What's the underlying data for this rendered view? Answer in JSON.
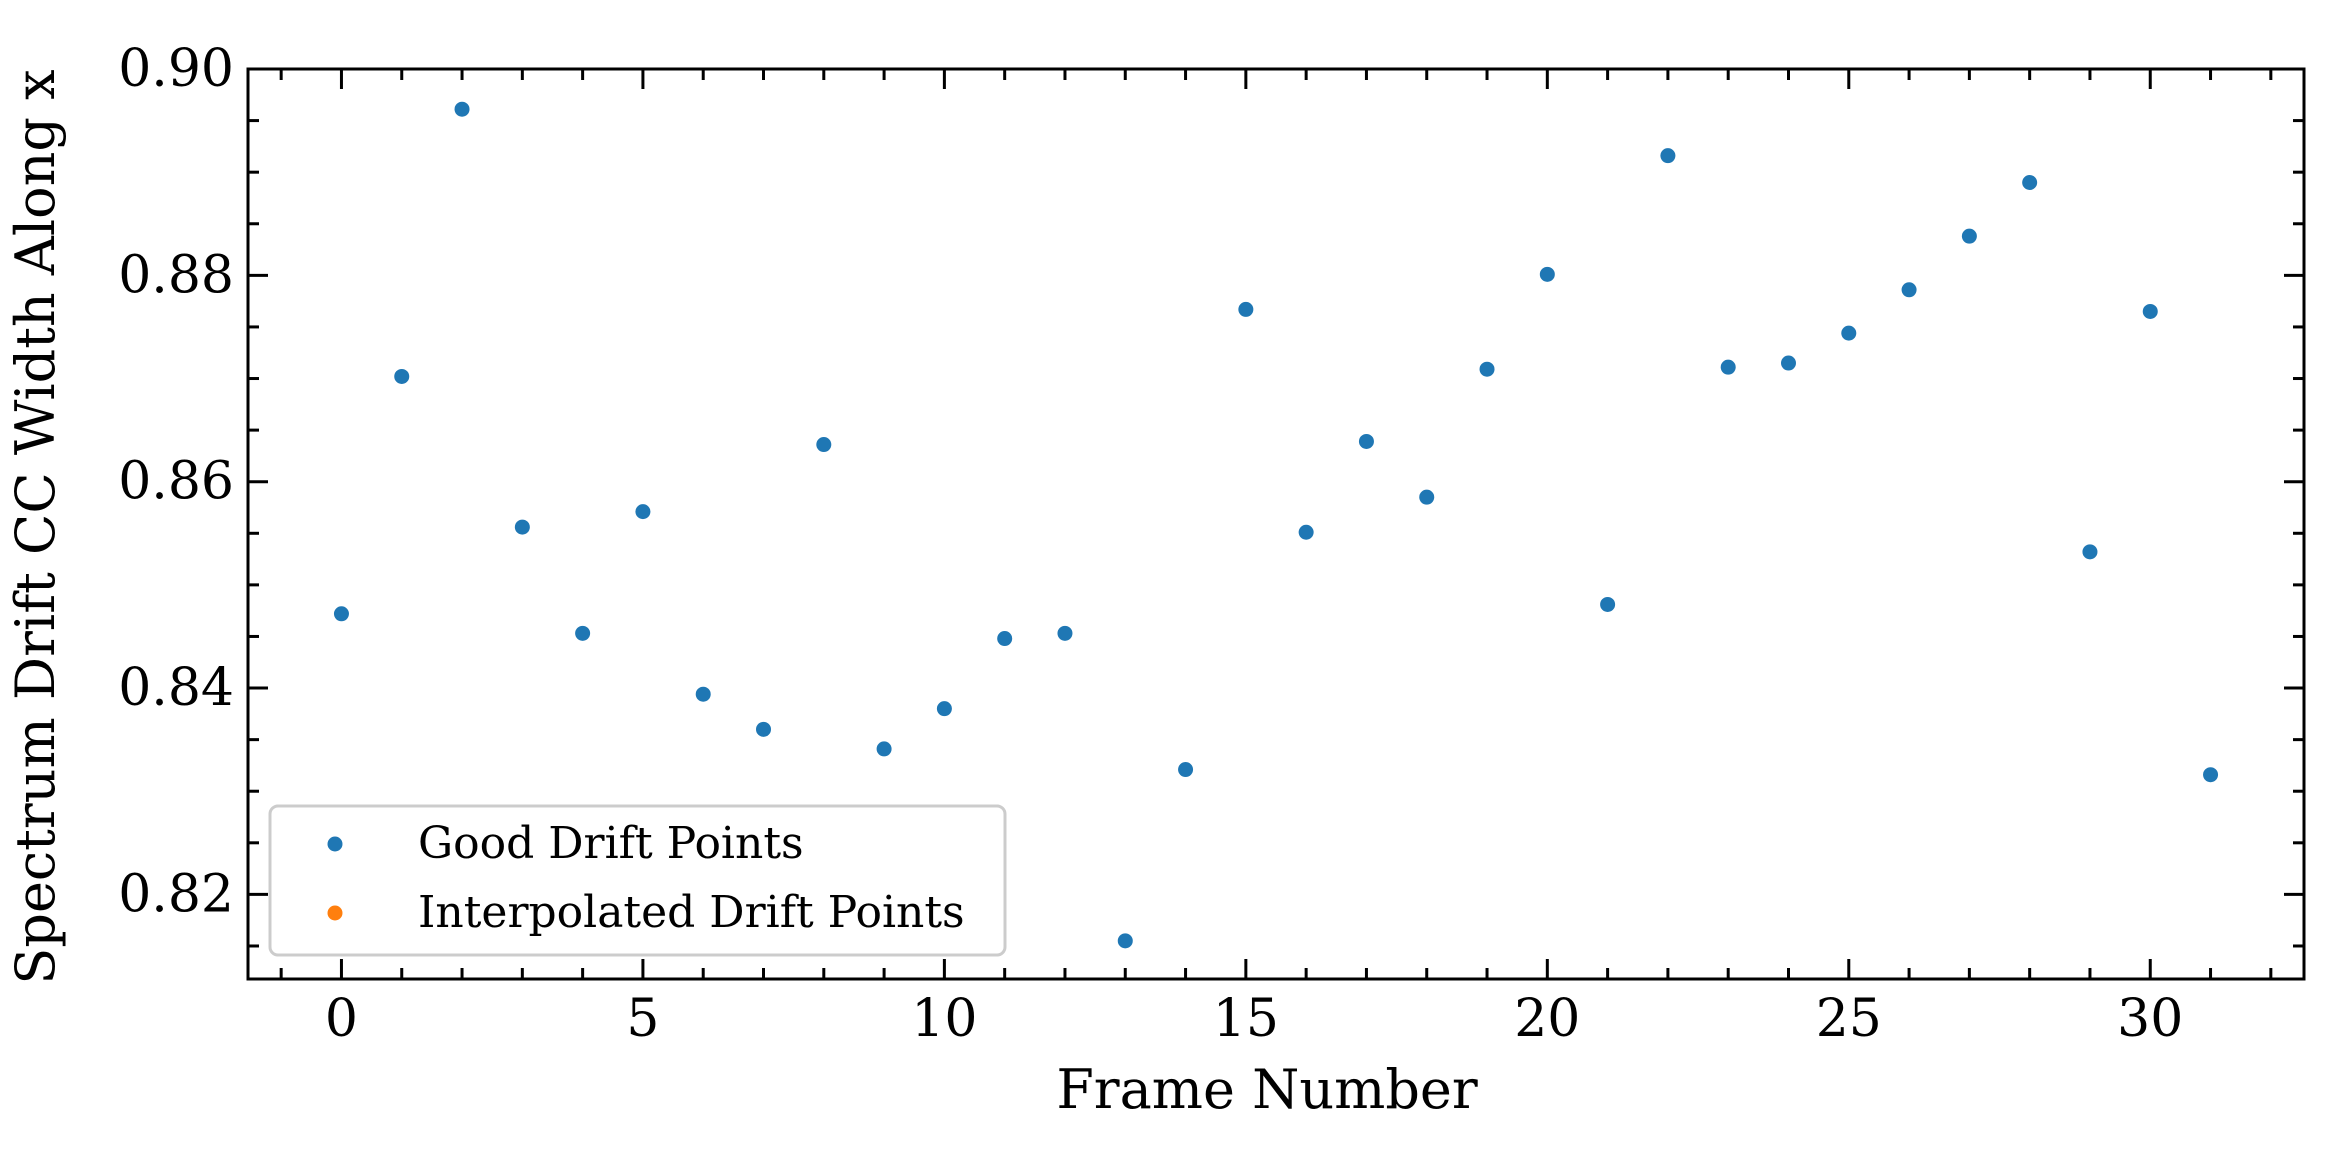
{
  "chart_data": {
    "type": "scatter",
    "xlabel": "Frame Number",
    "ylabel": "Spectrum Drift CC Width Along x",
    "xlim": [
      -1.55,
      32.55
    ],
    "ylim": [
      0.8118,
      0.9
    ],
    "xticks": [
      0,
      5,
      10,
      15,
      20,
      25,
      30
    ],
    "xtick_labels": [
      "0",
      "5",
      "10",
      "15",
      "20",
      "25",
      "30"
    ],
    "yticks": [
      0.82,
      0.84,
      0.86,
      0.88,
      0.9
    ],
    "ytick_labels": [
      "0.82",
      "0.84",
      "0.86",
      "0.88",
      "0.90"
    ],
    "grid": false,
    "legend_position": "lower-left",
    "series": [
      {
        "name": "Good Drift Points",
        "color": "#1f77b4",
        "x": [
          0,
          1,
          2,
          3,
          4,
          5,
          6,
          7,
          8,
          9,
          10,
          11,
          12,
          13,
          14,
          15,
          16,
          17,
          18,
          19,
          20,
          21,
          22,
          23,
          24,
          25,
          26,
          27,
          28,
          29,
          30,
          31
        ],
        "y": [
          0.8472,
          0.8702,
          0.8961,
          0.8556,
          0.8453,
          0.8571,
          0.8394,
          0.836,
          0.8636,
          0.8341,
          0.838,
          0.8448,
          0.8453,
          0.8155,
          0.8321,
          0.8767,
          0.8551,
          0.8639,
          0.8585,
          0.8709,
          0.8801,
          0.8481,
          0.8916,
          0.8711,
          0.8715,
          0.8744,
          0.8786,
          0.8838,
          0.889,
          0.8532,
          0.8765,
          0.8316
        ]
      },
      {
        "name": "Interpolated Drift Points",
        "color": "#ff7f0e",
        "x": [],
        "y": []
      }
    ]
  }
}
